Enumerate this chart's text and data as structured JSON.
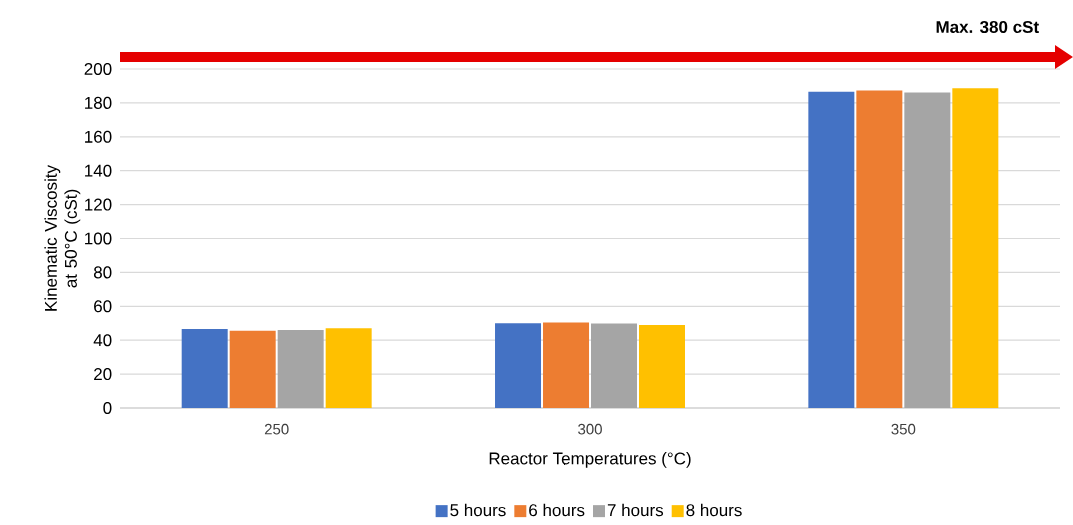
{
  "chart_data": {
    "type": "bar",
    "categories": [
      "250",
      "300",
      "350"
    ],
    "series": [
      {
        "name": "5 hours",
        "color": "#4472c4",
        "values": [
          46.6,
          50.0,
          186.5
        ]
      },
      {
        "name": "6 hours",
        "color": "#ed7d31",
        "values": [
          45.5,
          50.5,
          187.3
        ]
      },
      {
        "name": "7 hours",
        "color": "#a5a5a5",
        "values": [
          46.0,
          49.8,
          186.2
        ]
      },
      {
        "name": "8 hours",
        "color": "#ffc000",
        "values": [
          47.0,
          49.0,
          188.6
        ]
      }
    ],
    "xlabel": "Reactor Temperatures (°C)",
    "ylabel": "Kinematic Viscosity at 50°C (cSt)",
    "ylim": [
      0,
      200
    ],
    "yticks": [
      0,
      20,
      40,
      60,
      80,
      100,
      120,
      140,
      160,
      180,
      200
    ],
    "grid": "y",
    "legend": "bottom",
    "annotations": [
      "Max. 380 cSt"
    ]
  }
}
